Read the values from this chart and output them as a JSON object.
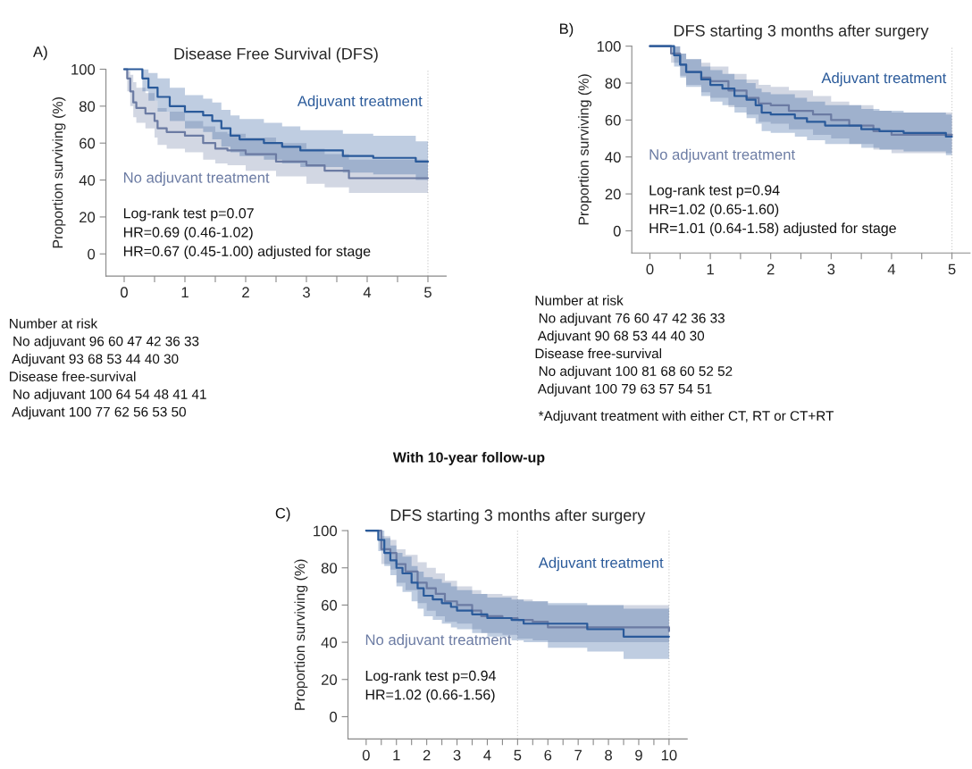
{
  "chart_data": [
    {
      "type": "step",
      "title": "Disease Free Survival (DFS)",
      "ylabel": "Proportion surviving (%)",
      "xlim": [
        -0.3,
        5.3
      ],
      "ylim": [
        -12,
        100
      ],
      "xticks": [
        0,
        {
          "value": 0.5,
          "label": null
        },
        1,
        {
          "value": 1.5,
          "label": null
        },
        2,
        {
          "value": 2.5,
          "label": null
        },
        3,
        {
          "value": 3.5,
          "label": null
        },
        4,
        {
          "value": 4.5,
          "label": null
        },
        5
      ],
      "yticks": [
        0,
        20,
        40,
        60,
        80,
        100
      ],
      "grid": false,
      "legend": false,
      "ref_lines": [
        {
          "axis": "x",
          "value": 5,
          "color": "#d0d0d0",
          "line_style": "dotted"
        }
      ],
      "annotations": [
        "A)",
        "Log-rank test p=0.07\nHR=0.69 (0.46-1.02)\nHR=0.67 (0.45-1.00) adjusted for stage",
        "Number at risk\n No adjuvant 96 60 47 42 36 33\n Adjuvant 93 68 53 44 40 30\nDisease free-survival\n No adjuvant 100 64 54 48 41 41\n Adjuvant 100 77 62 56 53 50"
      ],
      "series": [
        {
          "name": "No adjuvant treatment",
          "color": "#6b7ba3",
          "x": [
            0,
            0.05,
            0.1,
            0.15,
            0.2,
            0.35,
            0.5,
            0.55,
            0.7,
            1.0,
            1.3,
            1.5,
            1.7,
            2.0,
            2.5,
            3.0,
            3.3,
            3.7,
            4.0,
            5.0
          ],
          "values": [
            100,
            95,
            88,
            82,
            79,
            76,
            72,
            68,
            66,
            64,
            60,
            57,
            56,
            54,
            50,
            48,
            45,
            41,
            41,
            41
          ],
          "upper": [
            100,
            99,
            97,
            93,
            90,
            87,
            83,
            79,
            77,
            72,
            69,
            66,
            65,
            63,
            60,
            57,
            54,
            51,
            51,
            51
          ],
          "lower": [
            100,
            88,
            80,
            74,
            71,
            68,
            63,
            59,
            57,
            55,
            51,
            49,
            48,
            45,
            42,
            38,
            36,
            33,
            33,
            32
          ]
        },
        {
          "name": "Adjuvant treatment",
          "color": "#2a5a9a",
          "x": [
            0,
            0.17,
            0.3,
            0.4,
            0.55,
            0.75,
            1.0,
            1.3,
            1.45,
            1.6,
            1.75,
            1.9,
            2.3,
            2.6,
            2.9,
            3.6,
            4.1,
            4.8,
            5.0
          ],
          "values": [
            100,
            100,
            95,
            90,
            85,
            80,
            77,
            75,
            72,
            68,
            64,
            62,
            60,
            58,
            56,
            53,
            52,
            50,
            50
          ],
          "upper": [
            100,
            100,
            100,
            98,
            95,
            90,
            86,
            84,
            82,
            78,
            75,
            73,
            71,
            69,
            67,
            65,
            64,
            61,
            61
          ],
          "lower": [
            100,
            100,
            88,
            83,
            77,
            72,
            68,
            66,
            62,
            58,
            55,
            53,
            51,
            49,
            47,
            44,
            43,
            40,
            40
          ]
        }
      ]
    },
    {
      "type": "step",
      "title": "DFS starting 3 months after surgery",
      "ylabel": "Proportion surviving (%)",
      "xlim": [
        -0.3,
        5.3
      ],
      "ylim": [
        -12,
        100
      ],
      "xticks": [
        0,
        {
          "value": 0.5,
          "label": null
        },
        1,
        {
          "value": 1.5,
          "label": null
        },
        2,
        {
          "value": 2.5,
          "label": null
        },
        3,
        {
          "value": 3.5,
          "label": null
        },
        4,
        {
          "value": 4.5,
          "label": null
        },
        5
      ],
      "yticks": [
        0,
        20,
        40,
        60,
        80,
        100
      ],
      "grid": false,
      "legend": false,
      "ref_lines": [
        {
          "axis": "x",
          "value": 5,
          "color": "#d0d0d0",
          "line_style": "dotted"
        }
      ],
      "annotations": [
        "B)",
        "Log-rank test p=0.94\nHR=1.02 (0.65-1.60)\nHR=1.01 (0.64-1.58) adjusted for stage",
        "Number at risk\n No adjuvant 76 60 47 42 36 33\n Adjuvant 90 68 53 44 40 30\nDisease free-survival\n No adjuvant 100 81 68 60 52 52\n Adjuvant 100 79 63 57 54 51",
        " *Adjuvant treatment with either CT, RT or CT+RT"
      ],
      "series": [
        {
          "name": "No adjuvant treatment",
          "color": "#6b7ba3",
          "x": [
            0,
            0.2,
            0.35,
            0.5,
            0.6,
            0.85,
            1.0,
            1.3,
            1.6,
            1.8,
            2.0,
            2.3,
            2.7,
            3.0,
            3.3,
            3.7,
            4.0,
            5.0
          ],
          "values": [
            100,
            100,
            96,
            90,
            86,
            83,
            81,
            76,
            72,
            69,
            68,
            65,
            63,
            60,
            57,
            54,
            52,
            52
          ],
          "upper": [
            100,
            100,
            100,
            96,
            93,
            91,
            89,
            85,
            82,
            79,
            78,
            76,
            73,
            70,
            68,
            65,
            64,
            64
          ],
          "lower": [
            100,
            100,
            91,
            84,
            79,
            75,
            72,
            67,
            63,
            59,
            58,
            55,
            52,
            50,
            47,
            44,
            42,
            42
          ]
        },
        {
          "name": "Adjuvant treatment",
          "color": "#2a5a9a",
          "x": [
            0,
            0.2,
            0.4,
            0.5,
            0.6,
            0.85,
            1.0,
            1.2,
            1.4,
            1.6,
            1.75,
            1.85,
            2.0,
            2.4,
            2.6,
            2.9,
            3.5,
            3.8,
            4.2,
            4.9,
            5.0
          ],
          "values": [
            100,
            100,
            95,
            90,
            86,
            82,
            79,
            77,
            73,
            71,
            68,
            64,
            63,
            61,
            59,
            57,
            55,
            54,
            53,
            51,
            51
          ],
          "upper": [
            100,
            100,
            100,
            96,
            93,
            89,
            87,
            85,
            82,
            80,
            77,
            75,
            74,
            72,
            70,
            68,
            66,
            65,
            64,
            63,
            63
          ],
          "lower": [
            100,
            100,
            89,
            83,
            78,
            73,
            70,
            68,
            64,
            61,
            58,
            54,
            53,
            51,
            49,
            47,
            45,
            44,
            43,
            41,
            41
          ]
        }
      ]
    },
    {
      "type": "step",
      "title": "DFS starting 3 months after surgery",
      "subtitle": "With 10-year follow-up",
      "ylabel": "Proportion surviving (%)",
      "xlim": [
        -0.6,
        10.6
      ],
      "ylim": [
        -12,
        100
      ],
      "xticks": [
        0,
        {
          "value": 0.5,
          "label": null
        },
        1,
        {
          "value": 1.5,
          "label": null
        },
        2,
        {
          "value": 2.5,
          "label": null
        },
        3,
        {
          "value": 3.5,
          "label": null
        },
        4,
        {
          "value": 4.5,
          "label": null
        },
        5,
        {
          "value": 5.5,
          "label": null
        },
        6,
        {
          "value": 6.5,
          "label": null
        },
        7,
        {
          "value": 7.5,
          "label": null
        },
        8,
        {
          "value": 8.5,
          "label": null
        },
        9,
        {
          "value": 9.5,
          "label": null
        },
        10
      ],
      "yticks": [
        0,
        20,
        40,
        60,
        80,
        100
      ],
      "grid": false,
      "legend": false,
      "ref_lines": [
        {
          "axis": "x",
          "value": 5,
          "color": "#d0d0d0",
          "line_style": "dotted"
        },
        {
          "axis": "x",
          "value": 10,
          "color": "#d0d0d0",
          "line_style": "dotted"
        }
      ],
      "annotations": [
        "C)",
        "Log-rank test p=0.94\nHR=1.02 (0.66-1.56)"
      ],
      "series": [
        {
          "name": "No adjuvant treatment",
          "color": "#6b7ba3",
          "x": [
            0,
            0.2,
            0.5,
            0.8,
            1.0,
            1.3,
            1.7,
            2.0,
            2.3,
            2.6,
            3.0,
            3.5,
            3.8,
            4.5,
            5.0,
            5.5,
            6.0,
            10.0
          ],
          "values": [
            100,
            100,
            90,
            88,
            82,
            78,
            72,
            69,
            66,
            62,
            60,
            57,
            54,
            53,
            52,
            51,
            48,
            46
          ],
          "upper": [
            100,
            100,
            97,
            95,
            90,
            87,
            83,
            80,
            77,
            73,
            70,
            68,
            66,
            65,
            63,
            62,
            60,
            58
          ],
          "lower": [
            100,
            100,
            82,
            79,
            72,
            68,
            61,
            57,
            54,
            51,
            50,
            47,
            45,
            44,
            42,
            41,
            40,
            35
          ]
        },
        {
          "name": "Adjuvant treatment",
          "color": "#2a5a9a",
          "x": [
            0,
            0.2,
            0.4,
            0.6,
            0.8,
            1.0,
            1.2,
            1.5,
            1.7,
            1.9,
            2.2,
            2.5,
            2.8,
            3.0,
            3.5,
            4.0,
            4.8,
            5.2,
            6.0,
            7.3,
            8.5,
            10.0
          ],
          "values": [
            100,
            100,
            95,
            88,
            84,
            80,
            77,
            72,
            69,
            65,
            63,
            61,
            59,
            57,
            55,
            53,
            52,
            50,
            50,
            47,
            43,
            43
          ],
          "upper": [
            100,
            100,
            100,
            96,
            92,
            88,
            86,
            81,
            78,
            75,
            74,
            72,
            70,
            68,
            66,
            64,
            63,
            62,
            61,
            60,
            58,
            57
          ],
          "lower": [
            100,
            100,
            89,
            81,
            76,
            70,
            67,
            62,
            58,
            54,
            52,
            50,
            48,
            47,
            45,
            43,
            41,
            40,
            37,
            35,
            31,
            31
          ]
        }
      ]
    }
  ]
}
